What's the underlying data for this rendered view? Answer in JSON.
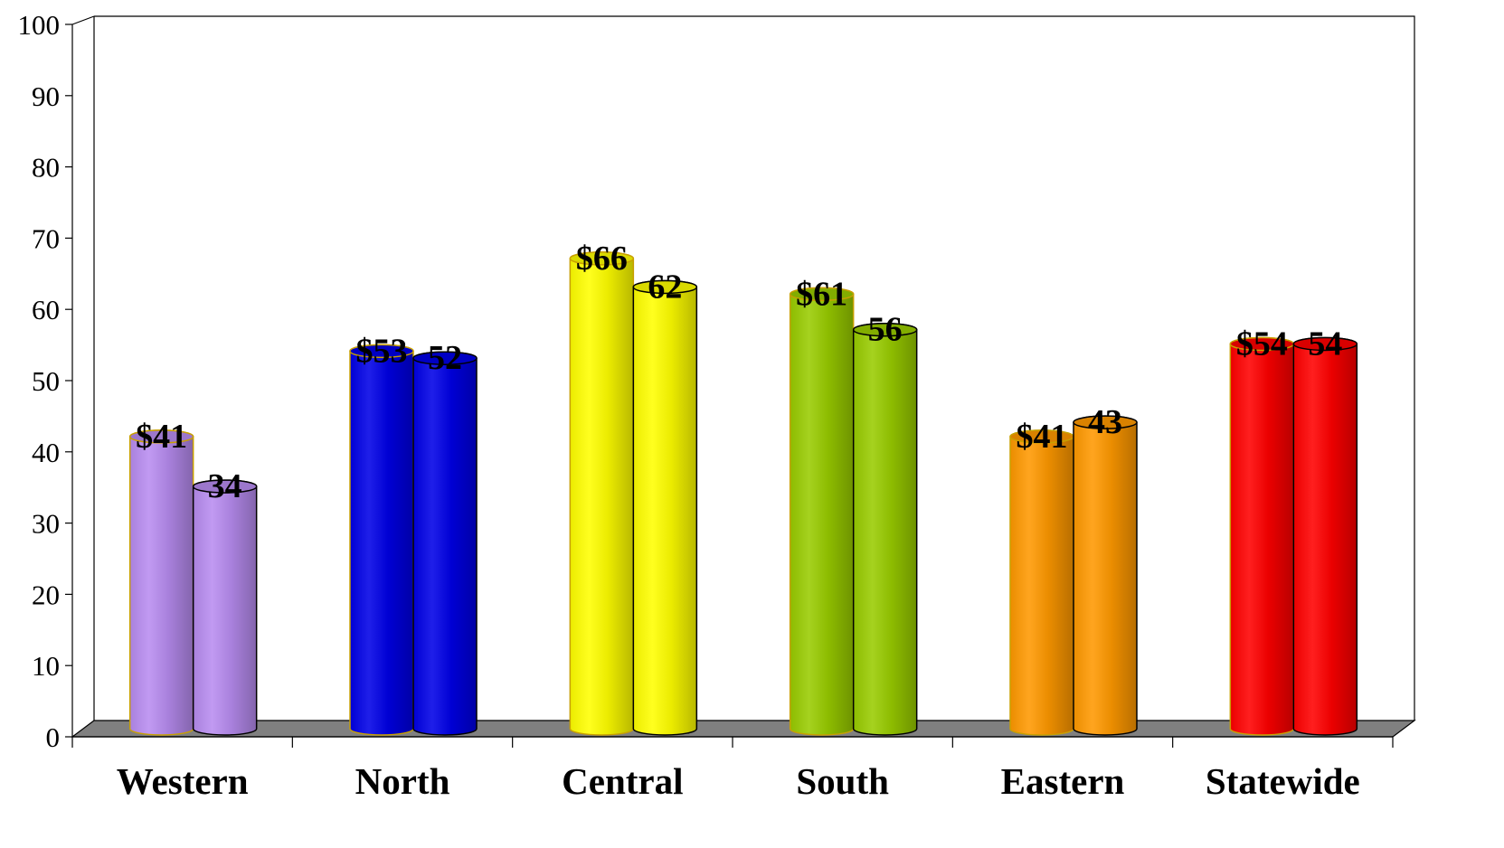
{
  "chart_data": {
    "type": "bar",
    "style": "3d-cylinder",
    "categories": [
      "Western",
      "North",
      "Central",
      "South",
      "Eastern",
      "Statewide"
    ],
    "series": [
      {
        "values": [
          41,
          53,
          66,
          61,
          41,
          54
        ],
        "labels": [
          "$41",
          "$53",
          "$66",
          "$61",
          "$41",
          "$54"
        ]
      },
      {
        "values": [
          34,
          52,
          62,
          56,
          43,
          54
        ],
        "labels": [
          "34",
          "52",
          "62",
          "56",
          "43",
          "54"
        ]
      }
    ],
    "category_colors": [
      "#b88cf0",
      "#0000e6",
      "#ffff00",
      "#99cc00",
      "#ff9900",
      "#ff0000"
    ],
    "ylim": [
      0,
      100
    ],
    "yticks": [
      "0",
      "10",
      "20",
      "30",
      "40",
      "50",
      "60",
      "70",
      "80",
      "90",
      "100"
    ],
    "grid": false,
    "legend": "none",
    "title": "",
    "xlabel": "",
    "ylabel": ""
  }
}
